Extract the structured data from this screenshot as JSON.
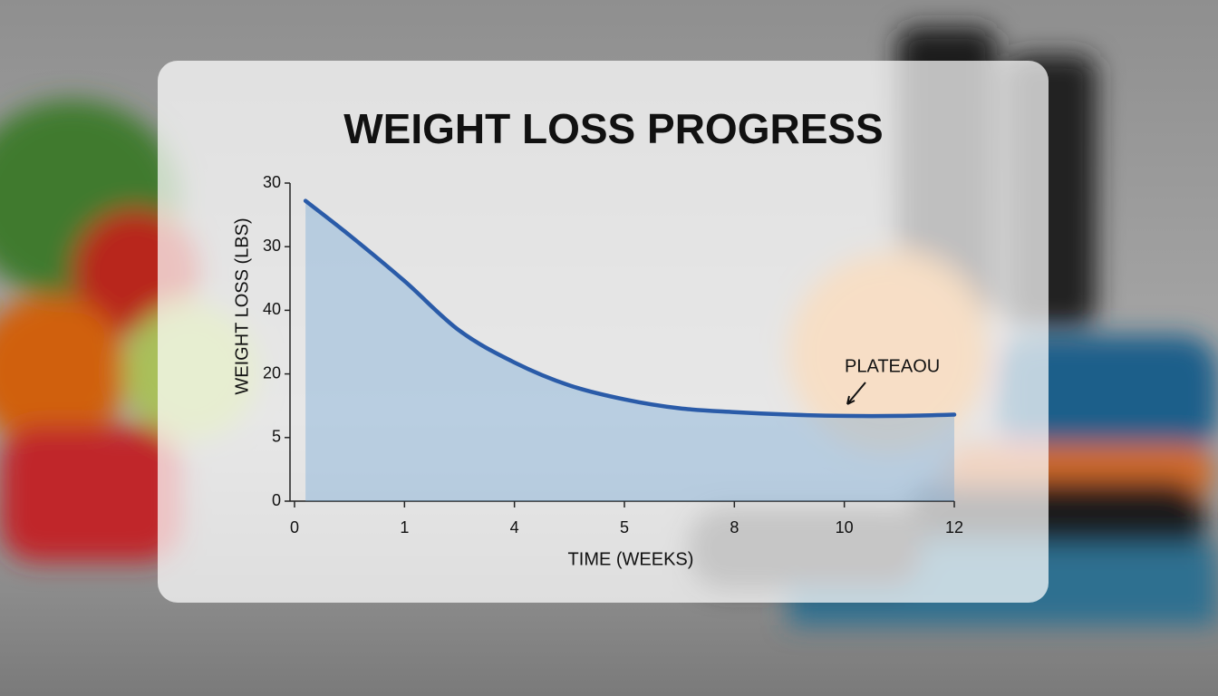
{
  "chart_data": {
    "type": "line",
    "title": "WEIGHT LOSS PROGRESS",
    "y_label": "WEIGHT LOSS (LBS)",
    "x_label": "TIME (WEEKS)",
    "annotation": "PLATEAOU",
    "x": [
      0.1,
      0.5,
      1,
      1.5,
      2,
      2.5,
      3,
      3.5,
      4,
      4.5,
      5,
      5.5,
      6
    ],
    "series": [
      {
        "name": "Weight loss",
        "color": "#2a5ba8",
        "values": [
          23.6,
          20.9,
          17.3,
          13.4,
          10.9,
          9.1,
          8.0,
          7.3,
          7.0,
          6.8,
          6.7,
          6.7,
          6.8
        ]
      }
    ],
    "xlim": [
      0,
      6
    ],
    "xticks": [
      0,
      1,
      {
        "value": 2,
        "label": "4"
      },
      {
        "value": 3,
        "label": "5"
      },
      {
        "value": 4,
        "label": "8"
      },
      {
        "value": 5,
        "label": "10"
      },
      {
        "value": 6,
        "label": "12"
      }
    ],
    "ylim": [
      0,
      25
    ],
    "yticks": [
      0,
      5,
      {
        "value": 10,
        "label": "20"
      },
      {
        "value": 15,
        "label": "40"
      },
      {
        "value": 20,
        "label": "30"
      },
      {
        "value": 25,
        "label": "30"
      }
    ],
    "fill": true
  }
}
